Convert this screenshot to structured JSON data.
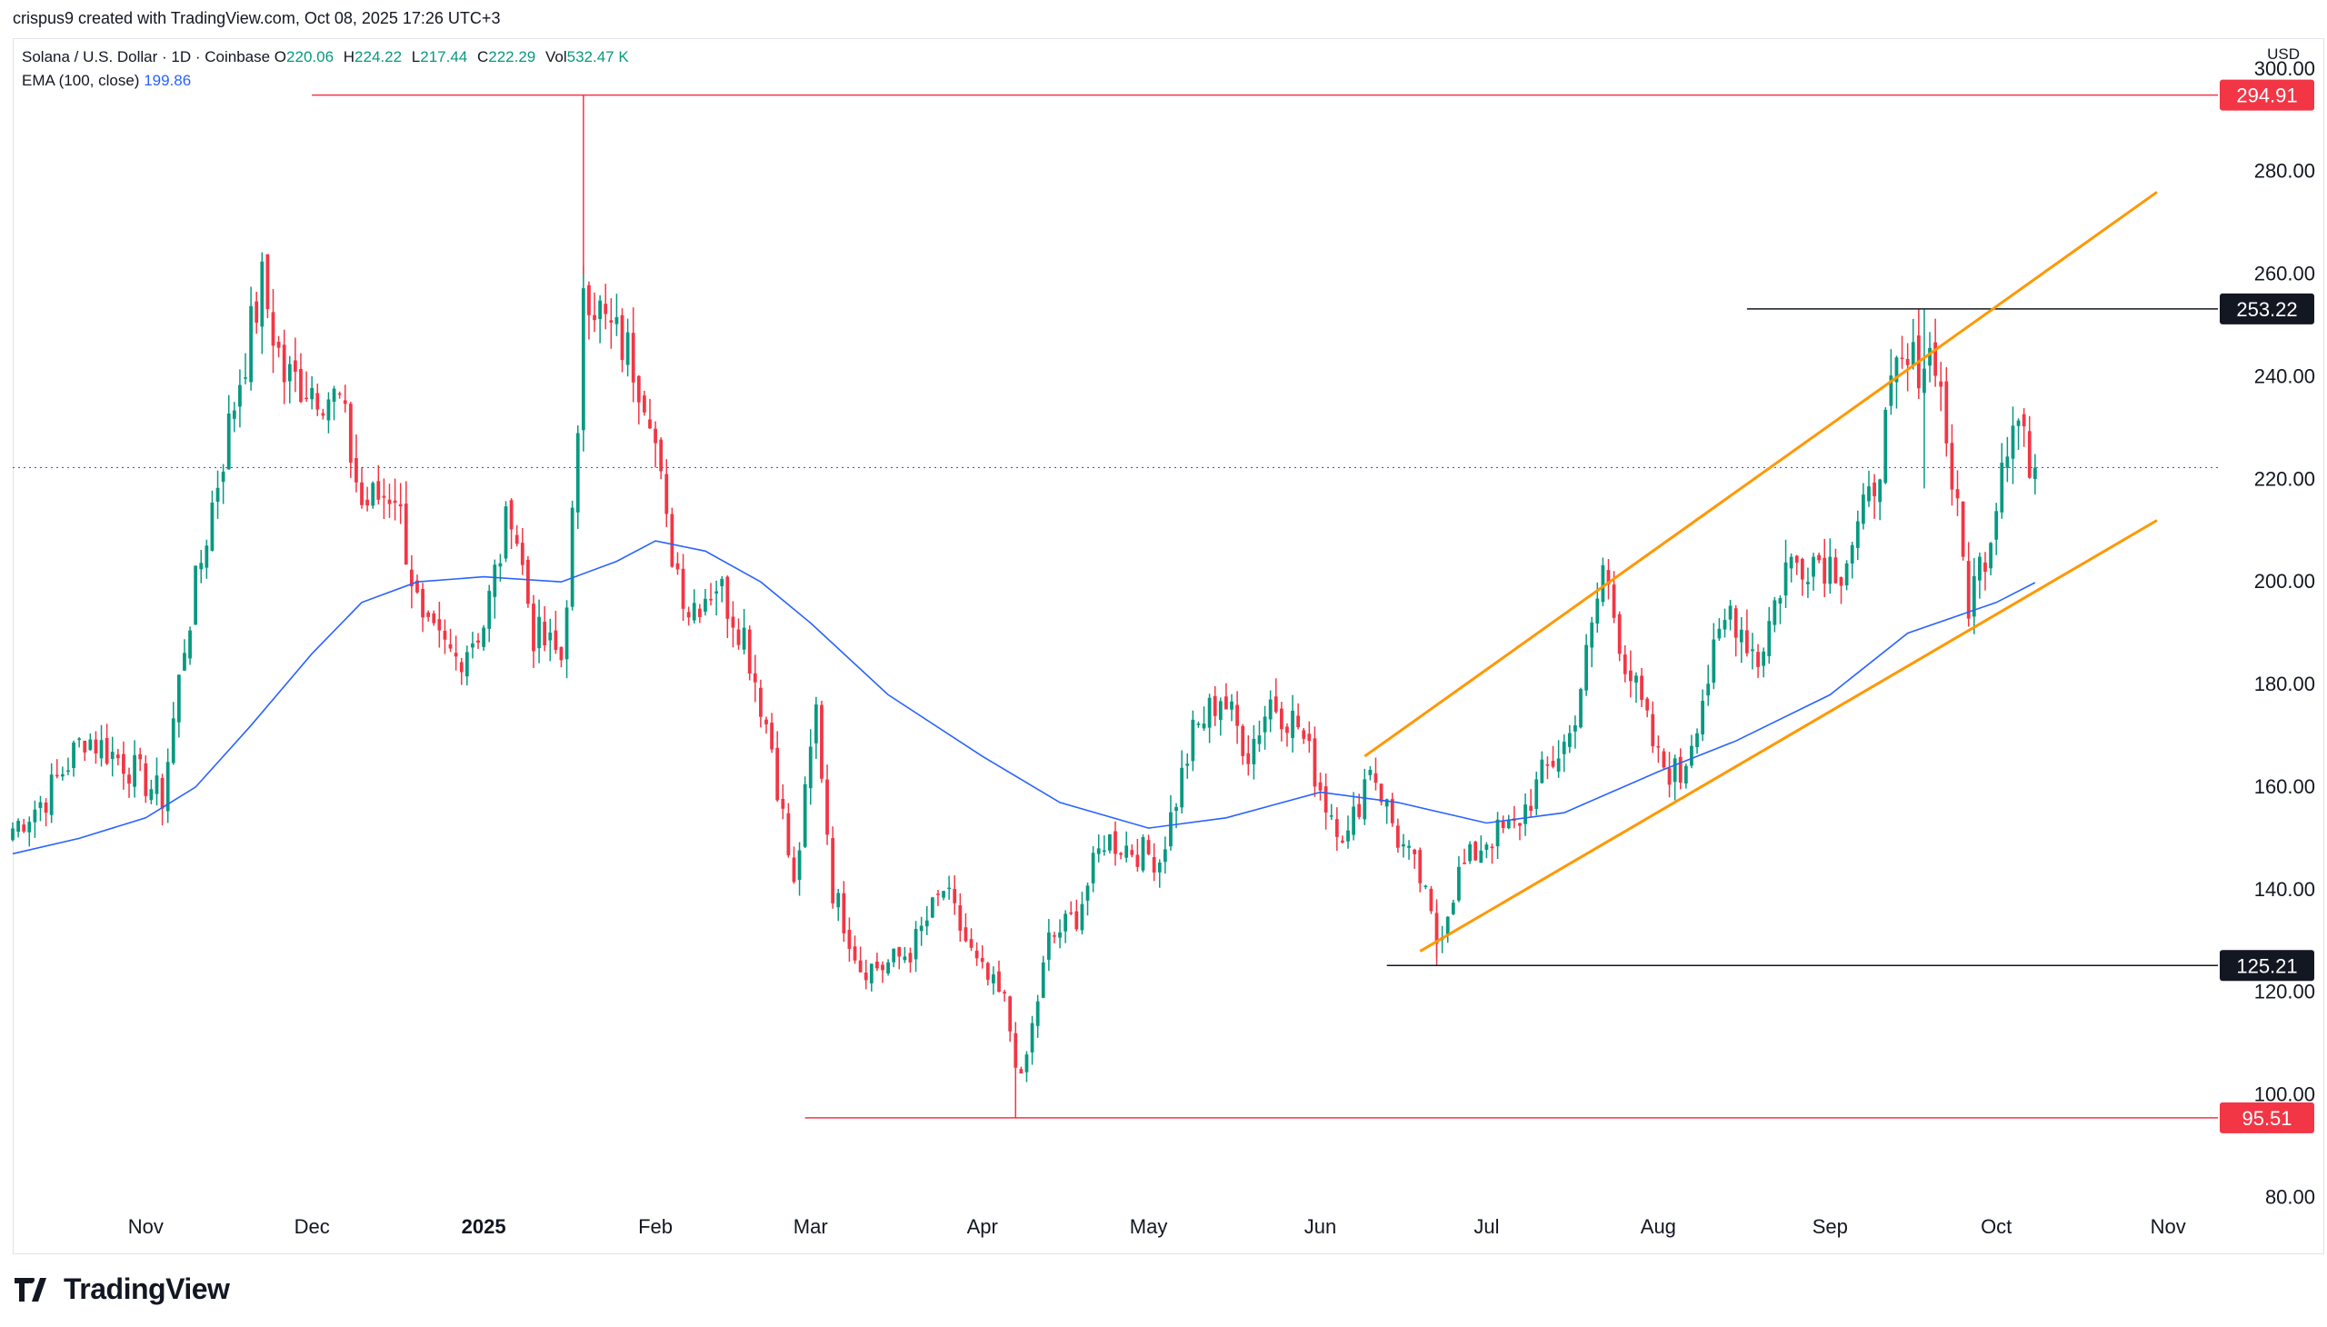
{
  "header": {
    "attribution": "crispus9 created with TradingView.com, Oct 08, 2025 17:26 UTC+3"
  },
  "legend": {
    "symbol": "Solana / U.S. Dollar · 1D · Coinbase",
    "o_label": "O",
    "o_value": "220.06",
    "h_label": "H",
    "h_value": "224.22",
    "l_label": "L",
    "l_value": "217.44",
    "c_label": "C",
    "c_value": "222.29",
    "vol_label": "Vol",
    "vol_value": "532.47 K",
    "ema_label": "EMA (100, close)",
    "ema_value": "199.86"
  },
  "currency": "USD",
  "footer": {
    "brand": "TradingView"
  },
  "colors": {
    "up": "#089981",
    "down": "#f23645",
    "ema": "#2962ff",
    "channel": "#ff9800",
    "level_red": "#f23645",
    "level_black": "#131722",
    "last_price": "#2962ff"
  },
  "chart_data": {
    "type": "candlestick",
    "title": "Solana / U.S. Dollar · 1D · Coinbase",
    "y_axis": {
      "ylim": [
        76,
        306
      ],
      "ticks": [
        80,
        100,
        120,
        140,
        160,
        180,
        200,
        220,
        240,
        260,
        280,
        300
      ],
      "tick_labels": [
        "80.00",
        "100.00",
        "120.00",
        "140.00",
        "160.00",
        "180.00",
        "200.00",
        "220.00",
        "240.00",
        "260.00",
        "280.00",
        "300.00"
      ]
    },
    "x_axis": {
      "start": "2024-10-08",
      "end": "2025-11-10",
      "labels": [
        {
          "date": "2024-11-01",
          "text": "Nov",
          "bold": false
        },
        {
          "date": "2024-12-01",
          "text": "Dec",
          "bold": false
        },
        {
          "date": "2025-01-01",
          "text": "2025",
          "bold": true
        },
        {
          "date": "2025-02-01",
          "text": "Feb",
          "bold": false
        },
        {
          "date": "2025-03-01",
          "text": "Mar",
          "bold": false
        },
        {
          "date": "2025-04-01",
          "text": "Apr",
          "bold": false
        },
        {
          "date": "2025-05-01",
          "text": "May",
          "bold": false
        },
        {
          "date": "2025-06-01",
          "text": "Jun",
          "bold": false
        },
        {
          "date": "2025-07-01",
          "text": "Jul",
          "bold": false
        },
        {
          "date": "2025-08-01",
          "text": "Aug",
          "bold": false
        },
        {
          "date": "2025-09-01",
          "text": "Sep",
          "bold": false
        },
        {
          "date": "2025-10-01",
          "text": "Oct",
          "bold": false
        },
        {
          "date": "2025-11-01",
          "text": "Nov",
          "bold": false
        }
      ]
    },
    "levels": [
      {
        "name": "high-level",
        "value": 294.91,
        "label": "294.91",
        "from": "2024-12-01",
        "color": "#f23645"
      },
      {
        "name": "resistance-level",
        "value": 253.22,
        "label": "253.22",
        "from": "2025-08-17",
        "color": "#131722"
      },
      {
        "name": "support-level",
        "value": 125.21,
        "label": "125.21",
        "from": "2025-06-13",
        "color": "#131722"
      },
      {
        "name": "low-level",
        "value": 95.51,
        "label": "95.51",
        "from": "2025-02-28",
        "color": "#f23645"
      }
    ],
    "last_price": 222.29,
    "channel": {
      "upper": [
        {
          "date": "2025-06-09",
          "value": 166
        },
        {
          "date": "2025-10-30",
          "value": 276
        }
      ],
      "lower": [
        {
          "date": "2025-06-19",
          "value": 128
        },
        {
          "date": "2025-10-30",
          "value": 212
        }
      ]
    },
    "price_path": [
      [
        "2024-10-08",
        152
      ],
      [
        "2024-10-14",
        158
      ],
      [
        "2024-10-21",
        170
      ],
      [
        "2024-10-28",
        165
      ],
      [
        "2024-11-04",
        158
      ],
      [
        "2024-11-08",
        188
      ],
      [
        "2024-11-13",
        215
      ],
      [
        "2024-11-18",
        240
      ],
      [
        "2024-11-22",
        258
      ],
      [
        "2024-11-26",
        240
      ],
      [
        "2024-12-02",
        238
      ],
      [
        "2024-12-06",
        235
      ],
      [
        "2024-12-10",
        215
      ],
      [
        "2024-12-16",
        218
      ],
      [
        "2024-12-21",
        190
      ],
      [
        "2024-12-27",
        185
      ],
      [
        "2025-01-01",
        192
      ],
      [
        "2025-01-06",
        215
      ],
      [
        "2025-01-10",
        190
      ],
      [
        "2025-01-15",
        185
      ],
      [
        "2025-01-18",
        225
      ],
      [
        "2025-01-19",
        260
      ],
      [
        "2025-01-23",
        250
      ],
      [
        "2025-01-27",
        245
      ],
      [
        "2025-01-31",
        235
      ],
      [
        "2025-02-03",
        210
      ],
      [
        "2025-02-07",
        195
      ],
      [
        "2025-02-12",
        200
      ],
      [
        "2025-02-17",
        190
      ],
      [
        "2025-02-22",
        168
      ],
      [
        "2025-02-26",
        140
      ],
      [
        "2025-03-02",
        175
      ],
      [
        "2025-03-05",
        140
      ],
      [
        "2025-03-10",
        125
      ],
      [
        "2025-03-14",
        125
      ],
      [
        "2025-03-19",
        128
      ],
      [
        "2025-03-25",
        140
      ],
      [
        "2025-03-31",
        125
      ],
      [
        "2025-04-05",
        118
      ],
      [
        "2025-04-08",
        102
      ],
      [
        "2025-04-13",
        130
      ],
      [
        "2025-04-18",
        135
      ],
      [
        "2025-04-23",
        150
      ],
      [
        "2025-04-28",
        148
      ],
      [
        "2025-05-03",
        146
      ],
      [
        "2025-05-09",
        170
      ],
      [
        "2025-05-14",
        178
      ],
      [
        "2025-05-19",
        167
      ],
      [
        "2025-05-23",
        177
      ],
      [
        "2025-05-28",
        172
      ],
      [
        "2025-06-02",
        157
      ],
      [
        "2025-06-06",
        150
      ],
      [
        "2025-06-10",
        165
      ],
      [
        "2025-06-15",
        150
      ],
      [
        "2025-06-19",
        142
      ],
      [
        "2025-06-22",
        130
      ],
      [
        "2025-06-26",
        143
      ],
      [
        "2025-07-01",
        150
      ],
      [
        "2025-07-06",
        152
      ],
      [
        "2025-07-11",
        162
      ],
      [
        "2025-07-16",
        170
      ],
      [
        "2025-07-20",
        190
      ],
      [
        "2025-07-22",
        203
      ],
      [
        "2025-07-26",
        185
      ],
      [
        "2025-08-01",
        165
      ],
      [
        "2025-08-05",
        162
      ],
      [
        "2025-08-09",
        178
      ],
      [
        "2025-08-14",
        195
      ],
      [
        "2025-08-19",
        185
      ],
      [
        "2025-08-24",
        203
      ],
      [
        "2025-08-29",
        205
      ],
      [
        "2025-09-03",
        203
      ],
      [
        "2025-09-08",
        215
      ],
      [
        "2025-09-13",
        240
      ],
      [
        "2025-09-17",
        243
      ],
      [
        "2025-09-20",
        245
      ],
      [
        "2025-09-23",
        220
      ],
      [
        "2025-09-26",
        196
      ],
      [
        "2025-09-30",
        210
      ],
      [
        "2025-10-02",
        225
      ],
      [
        "2025-10-04",
        233
      ],
      [
        "2025-10-06",
        230
      ],
      [
        "2025-10-07",
        220
      ],
      [
        "2025-10-08",
        222.29
      ]
    ],
    "ema_path": [
      [
        "2024-10-08",
        147
      ],
      [
        "2024-10-20",
        150
      ],
      [
        "2024-11-01",
        154
      ],
      [
        "2024-11-10",
        160
      ],
      [
        "2024-11-20",
        172
      ],
      [
        "2024-12-01",
        186
      ],
      [
        "2024-12-10",
        196
      ],
      [
        "2024-12-20",
        200
      ],
      [
        "2025-01-01",
        201
      ],
      [
        "2025-01-15",
        200
      ],
      [
        "2025-01-25",
        204
      ],
      [
        "2025-02-01",
        208
      ],
      [
        "2025-02-10",
        206
      ],
      [
        "2025-02-20",
        200
      ],
      [
        "2025-03-01",
        192
      ],
      [
        "2025-03-15",
        178
      ],
      [
        "2025-04-01",
        166
      ],
      [
        "2025-04-15",
        157
      ],
      [
        "2025-05-01",
        152
      ],
      [
        "2025-05-15",
        154
      ],
      [
        "2025-06-01",
        159
      ],
      [
        "2025-06-15",
        157
      ],
      [
        "2025-07-01",
        153
      ],
      [
        "2025-07-15",
        155
      ],
      [
        "2025-08-01",
        163
      ],
      [
        "2025-08-15",
        169
      ],
      [
        "2025-09-01",
        178
      ],
      [
        "2025-09-15",
        190
      ],
      [
        "2025-10-01",
        196
      ],
      [
        "2025-10-08",
        199.86
      ]
    ]
  }
}
